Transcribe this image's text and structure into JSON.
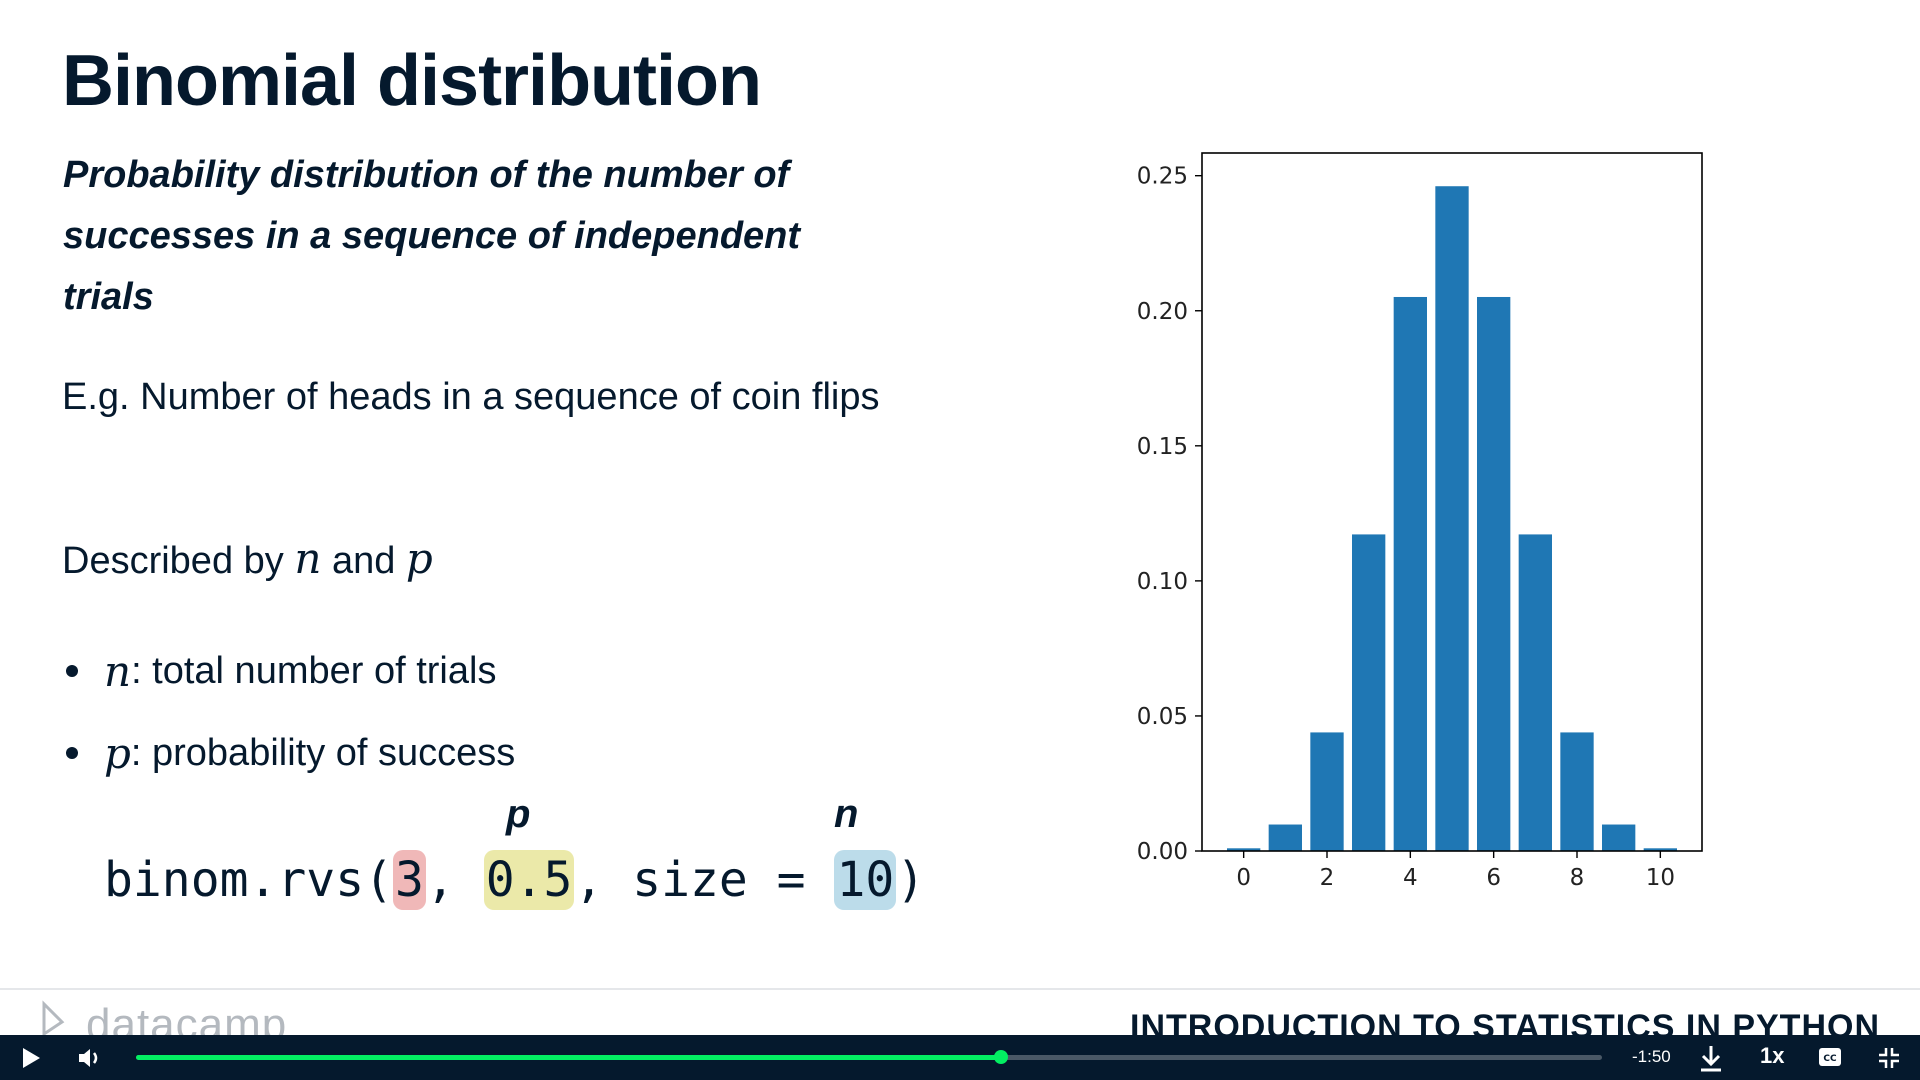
{
  "slide": {
    "title": "Binomial distribution",
    "definition": "Probability distribution of the number of successes in a sequence of independent trials",
    "example": "E.g. Number of heads in a sequence of coin flips",
    "described_prefix": "Described by",
    "described_n": "n",
    "described_and": "and",
    "described_p": "p",
    "bullets": [
      {
        "symbol": "n",
        "text": ": total number of trials"
      },
      {
        "symbol": "p",
        "text": ": probability of success"
      }
    ],
    "code": {
      "prefix": "binom.rvs(",
      "arg1": "3",
      "sep1": ", ",
      "arg2": "0.5",
      "sep2": ", size = ",
      "arg3": "10",
      "suffix": ")",
      "label_p": "p",
      "label_n": "n"
    },
    "colors": {
      "highlight_red": "#f0b8b8",
      "highlight_yellow": "#ebe9a9",
      "highlight_blue": "#bcdcea",
      "bar": "#1f77b4"
    }
  },
  "chart_data": {
    "type": "bar",
    "x": [
      0,
      1,
      2,
      3,
      4,
      5,
      6,
      7,
      8,
      9,
      10
    ],
    "values": [
      0.001,
      0.0098,
      0.0439,
      0.1172,
      0.2051,
      0.2461,
      0.2051,
      0.1172,
      0.0439,
      0.0098,
      0.001
    ],
    "xticks": [
      "0",
      "2",
      "4",
      "6",
      "8",
      "10"
    ],
    "xtick_values": [
      0,
      2,
      4,
      6,
      8,
      10
    ],
    "yticks": [
      "0.00",
      "0.05",
      "0.10",
      "0.15",
      "0.20",
      "0.25"
    ],
    "ytick_values": [
      0,
      0.05,
      0.1,
      0.15,
      0.2,
      0.25
    ],
    "xlim": [
      -1,
      11
    ],
    "ylim": [
      0,
      0.2584
    ],
    "grid": false,
    "title": "",
    "xlabel": "",
    "ylabel": ""
  },
  "footer": {
    "logo_text": "datacamp",
    "course_title": "INTRODUCTION TO STATISTICS IN PYTHON"
  },
  "player": {
    "time_remaining": "-1:50",
    "speed": "1x",
    "progress": 0.59,
    "accent_color": "#03ef62"
  }
}
